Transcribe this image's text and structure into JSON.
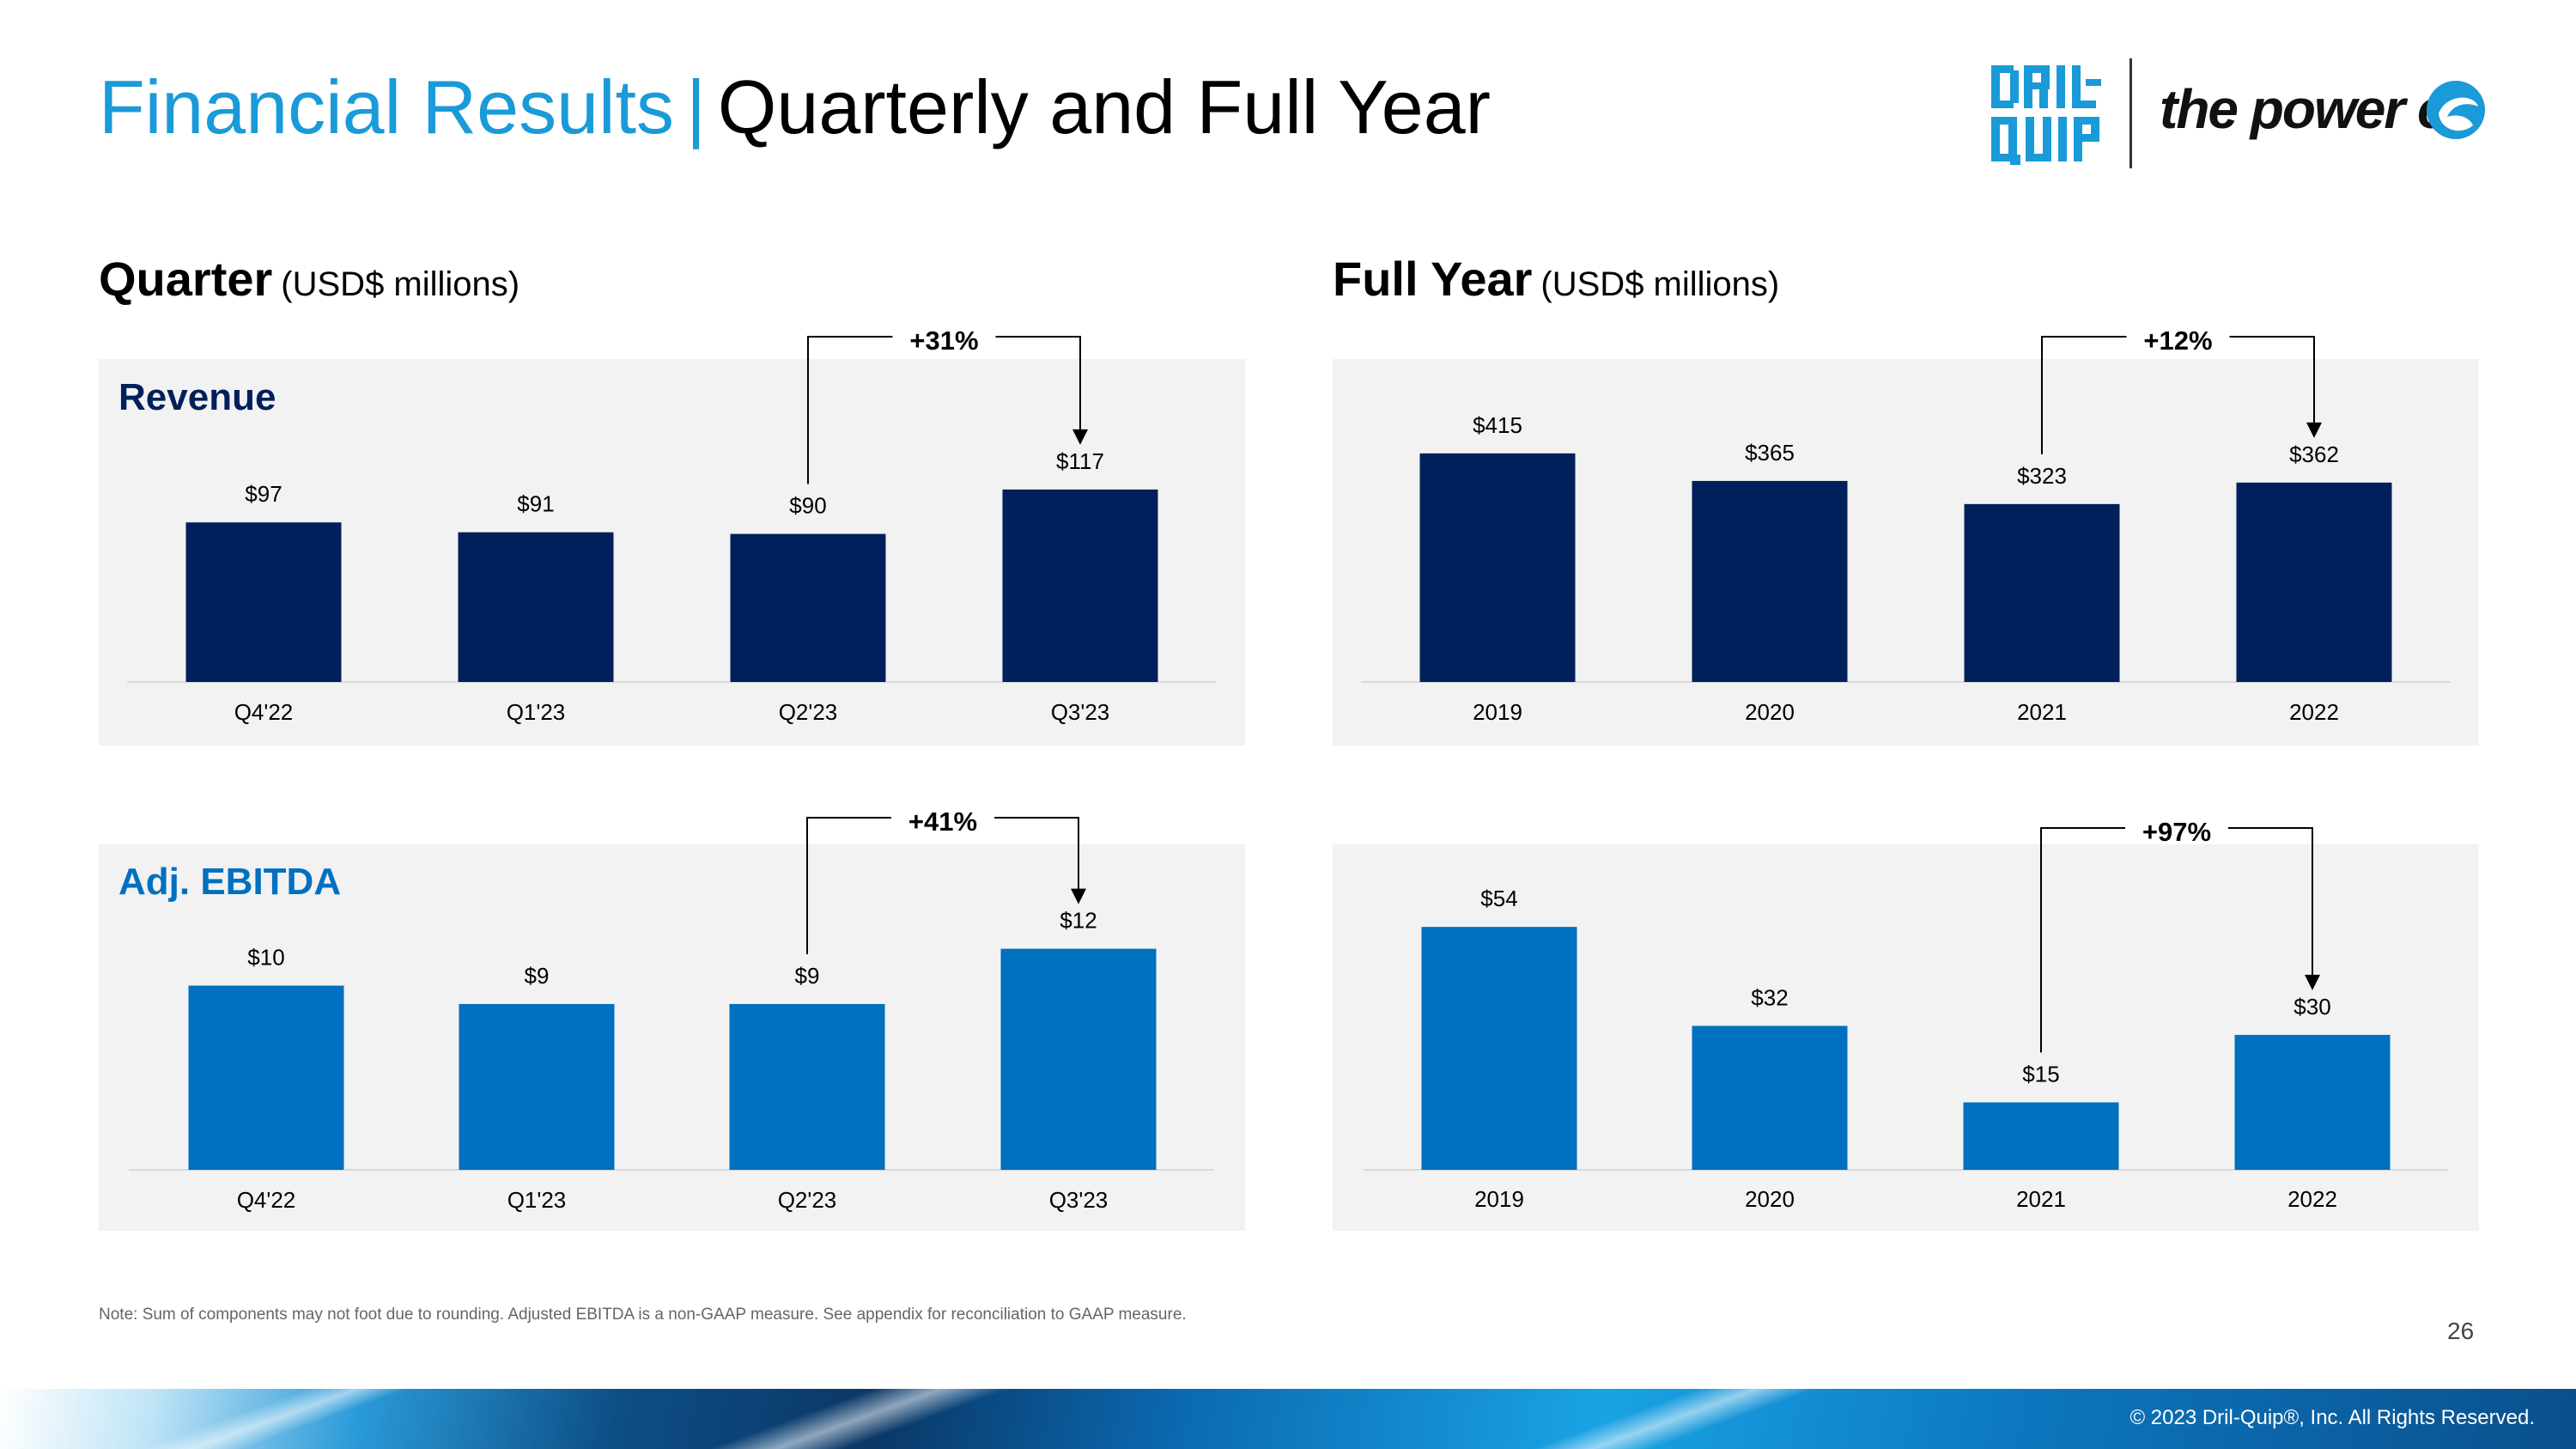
{
  "title": {
    "primary": "Financial Results",
    "separator": "|",
    "secondary": "Quarterly and Full Year"
  },
  "logo": {
    "mark_text": "DRIL-QUIP",
    "tagline": "the power of"
  },
  "sections": {
    "quarter": {
      "title": "Quarter",
      "unit": "(USD$ millions)"
    },
    "full_year": {
      "title": "Full Year",
      "unit": "(USD$ millions)"
    }
  },
  "panels": {
    "revenue_label": "Revenue",
    "ebitda_label": "Adj. EBITDA"
  },
  "colors": {
    "revenue": "#00205b",
    "ebitda": "#0070c0",
    "accent": "#1a9ad8",
    "panel_bg": "#f2f2f2"
  },
  "chart_data": [
    {
      "type": "bar",
      "id": "quarter-revenue",
      "title": "Revenue",
      "categories": [
        "Q4'22",
        "Q1'23",
        "Q2'23",
        "Q3'23"
      ],
      "values": [
        97,
        91,
        90,
        117
      ],
      "data_labels": [
        "$97",
        "$91",
        "$90",
        "$117"
      ],
      "ylim": [
        0,
        130
      ],
      "annotation": {
        "from": "Q2'23",
        "to": "Q3'23",
        "label": "+31%"
      }
    },
    {
      "type": "bar",
      "id": "full-year-revenue",
      "title": "",
      "categories": [
        "2019",
        "2020",
        "2021",
        "2022"
      ],
      "values": [
        415,
        365,
        323,
        362
      ],
      "data_labels": [
        "$415",
        "$365",
        "$323",
        "$362"
      ],
      "ylim": [
        0,
        460
      ],
      "annotation": {
        "from": "2021",
        "to": "2022",
        "label": "+12%"
      }
    },
    {
      "type": "bar",
      "id": "quarter-ebitda",
      "title": "Adj. EBITDA",
      "categories": [
        "Q4'22",
        "Q1'23",
        "Q2'23",
        "Q3'23"
      ],
      "values": [
        10,
        9,
        9,
        12
      ],
      "data_labels": [
        "$10",
        "$9",
        "$9",
        "$12"
      ],
      "ylim": [
        0,
        13.8
      ],
      "annotation": {
        "from": "Q2'23",
        "to": "Q3'23",
        "label": "+41%"
      }
    },
    {
      "type": "bar",
      "id": "full-year-ebitda",
      "title": "",
      "categories": [
        "2019",
        "2020",
        "2021",
        "2022"
      ],
      "values": [
        54,
        32,
        15,
        30
      ],
      "data_labels": [
        "$54",
        "$32",
        "$15",
        "$30"
      ],
      "ylim": [
        0,
        63
      ],
      "annotation": {
        "from": "2021",
        "to": "2022",
        "label": "+97%"
      }
    }
  ],
  "footer": {
    "note": "Note: Sum of components may not foot due to rounding. Adjusted EBITDA is a non-GAAP measure. See appendix for reconciliation to GAAP measure.",
    "page_number": "26",
    "copyright": "© 2023 Dril-Quip®, Inc. All Rights Reserved."
  }
}
